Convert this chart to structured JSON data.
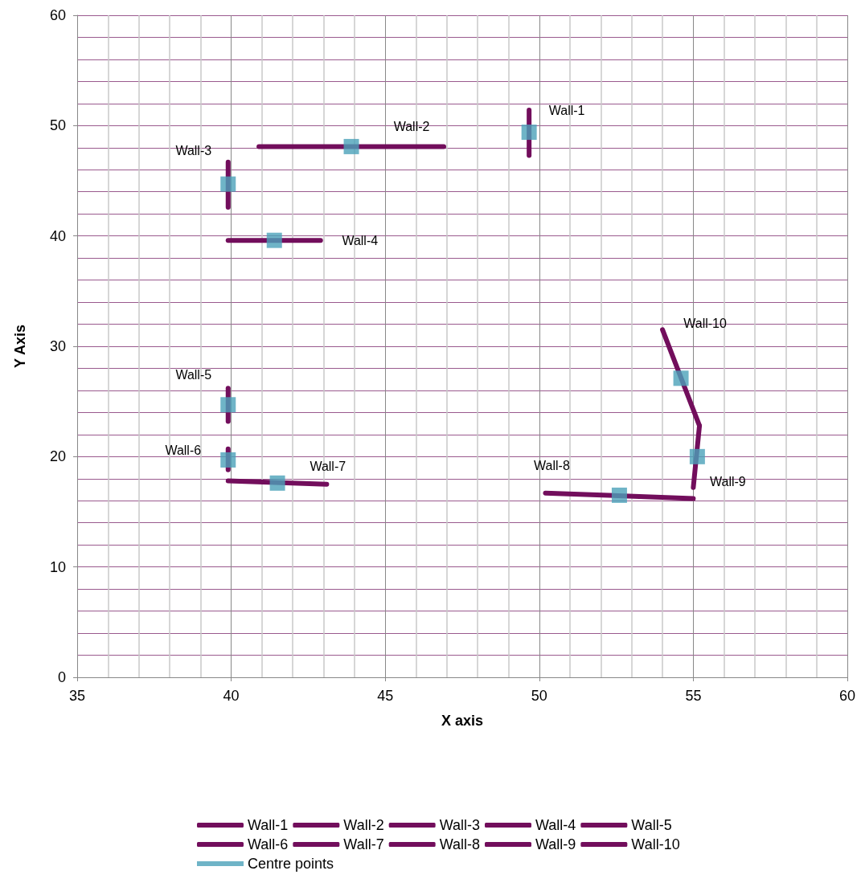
{
  "chart_data": {
    "type": "line",
    "xlabel": "X axis",
    "ylabel": "Y Axis",
    "xlim": [
      35,
      60
    ],
    "xticks": [
      35,
      40,
      45,
      50,
      55,
      60
    ],
    "ylim": [
      0,
      60
    ],
    "yticks": [
      0,
      10,
      20,
      30,
      40,
      50,
      60
    ],
    "grid": true,
    "legend": "bottom",
    "marker": "none",
    "line_style": "solid",
    "series": [
      {
        "name": "Wall-1",
        "color": "#720e5c",
        "x": [
          49.67,
          49.67
        ],
        "values": [
          51.4,
          47.3
        ]
      },
      {
        "name": "Wall-2",
        "color": "#720e5c",
        "x": [
          40.9,
          46.9
        ],
        "values": [
          48.1,
          48.1
        ]
      },
      {
        "name": "Wall-3",
        "color": "#720e5c",
        "x": [
          39.9,
          39.9
        ],
        "values": [
          46.7,
          42.6
        ]
      },
      {
        "name": "Wall-4",
        "color": "#720e5c",
        "x": [
          39.9,
          42.9
        ],
        "values": [
          39.6,
          39.6
        ]
      },
      {
        "name": "Wall-5",
        "color": "#720e5c",
        "x": [
          39.9,
          39.9
        ],
        "values": [
          26.2,
          23.2
        ]
      },
      {
        "name": "Wall-6",
        "color": "#720e5c",
        "x": [
          39.9,
          39.9
        ],
        "values": [
          20.7,
          18.8
        ]
      },
      {
        "name": "Wall-7",
        "color": "#720e5c",
        "x": [
          39.9,
          43.1
        ],
        "values": [
          17.8,
          17.5
        ]
      },
      {
        "name": "Wall-8",
        "color": "#720e5c",
        "x": [
          50.2,
          55.0
        ],
        "values": [
          16.7,
          16.2
        ]
      },
      {
        "name": "Wall-9",
        "color": "#720e5c",
        "x": [
          55.0,
          55.2
        ],
        "values": [
          17.2,
          22.8
        ]
      },
      {
        "name": "Wall-10",
        "color": "#720e5c",
        "x": [
          54.0,
          55.2
        ],
        "values": [
          31.5,
          22.8
        ]
      },
      {
        "name": "Centre points",
        "type": "scatter",
        "marker": "square",
        "color": "#4ba1b9",
        "x": [
          49.67,
          43.9,
          39.9,
          41.4,
          39.9,
          39.9,
          41.5,
          52.6,
          55.13,
          54.6
        ],
        "values": [
          49.4,
          48.1,
          44.7,
          39.6,
          24.7,
          19.7,
          17.6,
          16.5,
          20.0,
          27.1
        ]
      }
    ]
  }
}
